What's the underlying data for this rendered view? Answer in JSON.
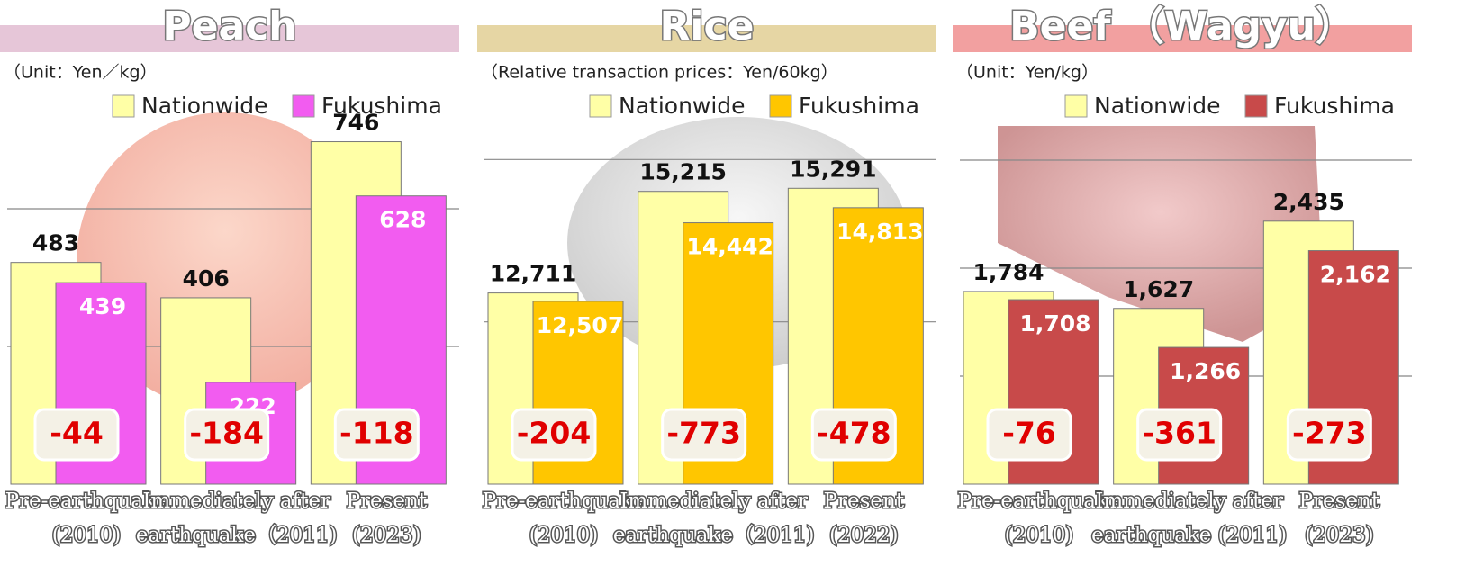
{
  "chart_data": [
    {
      "type": "bar",
      "title": "Peach",
      "note": "（Unit：Yen／kg）",
      "categories": [
        [
          "Pre-earthquake",
          "(2010)"
        ],
        [
          "Immediately after",
          "earthquake（2011)"
        ],
        [
          "Present",
          "(2023)"
        ]
      ],
      "series": [
        {
          "name": "Nationwide",
          "color": "#ffffa6",
          "values": [
            483,
            406,
            746
          ]
        },
        {
          "name": "Fukushima",
          "color": "#f25cf0",
          "values": [
            439,
            222,
            628
          ]
        }
      ],
      "differences": [
        -44,
        -184,
        -118
      ],
      "ylim": [
        0,
        800
      ],
      "yticks": [
        300,
        600
      ],
      "band": "#e6c6d8"
    },
    {
      "type": "bar",
      "title": "Rice",
      "note": "（Relative transaction prices：Yen/60kg）",
      "categories": [
        [
          "Pre-earthquake",
          "(2010)"
        ],
        [
          "Immediately after",
          "earthquake（2011)"
        ],
        [
          "Present",
          "(2022)"
        ]
      ],
      "series": [
        {
          "name": "Nationwide",
          "color": "#ffffa6",
          "values": [
            12711,
            15215,
            15291
          ],
          "value_labels": [
            "12,711",
            "15,215",
            "15,291"
          ]
        },
        {
          "name": "Fukushima",
          "color": "#ffc600",
          "values": [
            12507,
            14442,
            14813
          ],
          "value_labels": [
            "12,507",
            "14,442",
            "14,813"
          ]
        }
      ],
      "differences": [
        -204,
        -773,
        -478
      ],
      "ylim": [
        8000,
        17050
      ],
      "yticks": [
        12000,
        16000
      ],
      "band": "#e6d6a4"
    },
    {
      "type": "bar",
      "title": "Beef （Wagyu）",
      "note": "（Unit：Yen/kg）",
      "categories": [
        [
          "Pre-earthquake",
          "(2010)"
        ],
        [
          "Immediately after",
          "earthquake (2011)"
        ],
        [
          "Present",
          "(2023)"
        ]
      ],
      "series": [
        {
          "name": "Nationwide",
          "color": "#ffffa6",
          "values": [
            1784,
            1627,
            2435
          ],
          "value_labels": [
            "1,784",
            "1,627",
            "2,435"
          ]
        },
        {
          "name": "Fukushima",
          "color": "#c84a4a",
          "values": [
            1708,
            1266,
            2162
          ],
          "value_labels": [
            "1,708",
            "1,266",
            "2,162"
          ]
        }
      ],
      "differences": [
        -76,
        -361,
        -273
      ],
      "ylim": [
        0,
        3400
      ],
      "yticks": [
        1000,
        2000,
        3000
      ],
      "band": "#f2a0a0"
    }
  ]
}
